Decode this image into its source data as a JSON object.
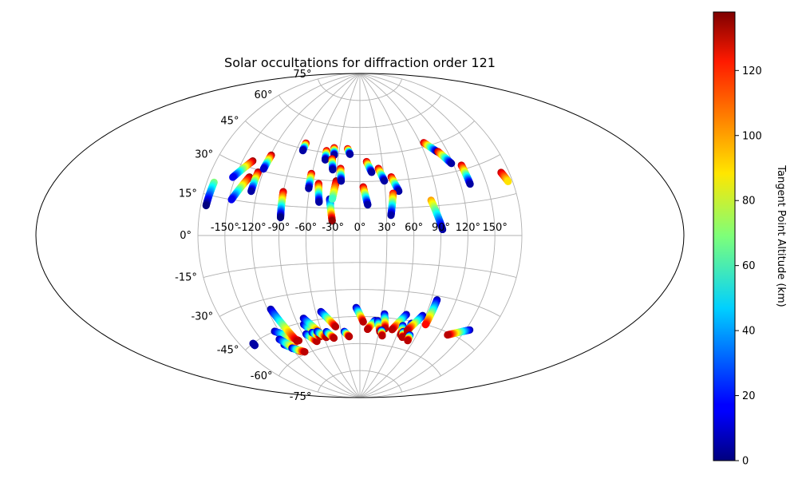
{
  "chart_data": {
    "type": "scatter",
    "title": "Solar occultations for diffraction order 121",
    "projection": "aitoff",
    "grid": true,
    "longitude_ticks": [
      {
        "value": -150,
        "label": "-150°"
      },
      {
        "value": -120,
        "label": "-120°"
      },
      {
        "value": -90,
        "label": "-90°"
      },
      {
        "value": -60,
        "label": "-60°"
      },
      {
        "value": -30,
        "label": "-30°"
      },
      {
        "value": 0,
        "label": "0°"
      },
      {
        "value": 30,
        "label": "30°"
      },
      {
        "value": 60,
        "label": "60°"
      },
      {
        "value": 90,
        "label": "90°"
      },
      {
        "value": 120,
        "label": "120°"
      },
      {
        "value": 150,
        "label": "150°"
      }
    ],
    "latitude_ticks": [
      {
        "value": 75,
        "label": "75°"
      },
      {
        "value": 60,
        "label": "60°"
      },
      {
        "value": 45,
        "label": "45°"
      },
      {
        "value": 30,
        "label": "30°"
      },
      {
        "value": 15,
        "label": "15°"
      },
      {
        "value": 0,
        "label": "0°"
      },
      {
        "value": -15,
        "label": "-15°"
      },
      {
        "value": -30,
        "label": "-30°"
      },
      {
        "value": -45,
        "label": "-45°"
      },
      {
        "value": -60,
        "label": "-60°"
      },
      {
        "value": -75,
        "label": "-75°"
      }
    ],
    "colorbar": {
      "label": "Tangent Point Altitude (km)",
      "min": 0,
      "max": 138,
      "colormap": "jet",
      "ticks": [
        {
          "value": 0,
          "label": "0"
        },
        {
          "value": 20,
          "label": "20"
        },
        {
          "value": 40,
          "label": "40"
        },
        {
          "value": 60,
          "label": "60"
        },
        {
          "value": 80,
          "label": "80"
        },
        {
          "value": 100,
          "label": "100"
        },
        {
          "value": 120,
          "label": "120"
        }
      ]
    },
    "tracks": [
      {
        "lon_start": -172,
        "lat_start": 20,
        "lon_end": -174,
        "lat_end": 11,
        "alt_start": 70,
        "alt_end": 0
      },
      {
        "lon_start": -138,
        "lat_start": 33,
        "lon_end": -153,
        "lat_end": 24,
        "alt_start": 135,
        "alt_end": 15
      },
      {
        "lon_start": -134,
        "lat_start": 26,
        "lon_end": -147,
        "lat_end": 15,
        "alt_start": 135,
        "alt_end": 15
      },
      {
        "lon_start": -126,
        "lat_start": 29,
        "lon_end": -127,
        "lat_end": 20,
        "alt_start": 135,
        "alt_end": 5
      },
      {
        "lon_start": -119,
        "lat_start": 38,
        "lon_end": -121,
        "lat_end": 31,
        "alt_start": 135,
        "alt_end": 10
      },
      {
        "lon_start": -90,
        "lat_start": 22,
        "lon_end": -89,
        "lat_end": 9,
        "alt_start": 130,
        "alt_end": 0
      },
      {
        "lon_start": -81,
        "lat_start": 48,
        "lon_end": -81,
        "lat_end": 44,
        "alt_start": 130,
        "alt_end": 5
      },
      {
        "lon_start": -61,
        "lat_start": 33,
        "lon_end": -61,
        "lat_end": 25,
        "alt_start": 130,
        "alt_end": 5
      },
      {
        "lon_start": -50,
        "lat_start": 28,
        "lon_end": -47,
        "lat_end": 18,
        "alt_start": 130,
        "alt_end": 5
      },
      {
        "lon_start": -48,
        "lat_start": 46,
        "lon_end": -47,
        "lat_end": 41,
        "alt_start": 130,
        "alt_end": 5
      },
      {
        "lon_start": -38,
        "lat_start": 48,
        "lon_end": -36,
        "lat_end": 44,
        "alt_start": 130,
        "alt_end": 5
      },
      {
        "lon_start": -38,
        "lat_start": 42,
        "lon_end": -35,
        "lat_end": 36,
        "alt_start": 130,
        "alt_end": 5
      },
      {
        "lon_start": -35,
        "lat_start": 20,
        "lon_end": -31,
        "lat_end": 8,
        "alt_start": 5,
        "alt_end": 135
      },
      {
        "lon_start": -29,
        "lat_start": 30,
        "lon_end": -32,
        "lat_end": 20,
        "alt_start": 135,
        "alt_end": 60
      },
      {
        "lon_start": -25,
        "lat_start": 37,
        "lon_end": -23,
        "lat_end": 30,
        "alt_start": 130,
        "alt_end": 5
      },
      {
        "lon_start": -18,
        "lat_start": 48,
        "lon_end": -14,
        "lat_end": 45,
        "alt_start": 130,
        "alt_end": 5
      },
      {
        "lon_start": 4,
        "lat_start": 27,
        "lon_end": 9,
        "lat_end": 17,
        "alt_start": 130,
        "alt_end": 5
      },
      {
        "lon_start": 9,
        "lat_start": 41,
        "lon_end": 15,
        "lat_end": 35,
        "alt_start": 130,
        "alt_end": 5
      },
      {
        "lon_start": 24,
        "lat_start": 37,
        "lon_end": 30,
        "lat_end": 30,
        "alt_start": 130,
        "alt_end": 5
      },
      {
        "lon_start": 39,
        "lat_start": 32,
        "lon_end": 46,
        "lat_end": 24,
        "alt_start": 130,
        "alt_end": 5
      },
      {
        "lon_start": 39,
        "lat_start": 23,
        "lon_end": 35,
        "lat_end": 11,
        "alt_start": 120,
        "alt_end": 5
      },
      {
        "lon_start": 82,
        "lat_start": 18,
        "lon_end": 92,
        "lat_end": 3,
        "alt_start": 100,
        "alt_end": 5
      },
      {
        "lon_start": 95,
        "lat_start": 47,
        "lon_end": 107,
        "lat_end": 41,
        "alt_start": 130,
        "alt_end": 5
      },
      {
        "lon_start": 108,
        "lat_start": 41,
        "lon_end": 118,
        "lat_end": 34,
        "alt_start": 130,
        "alt_end": 5
      },
      {
        "lon_start": 129,
        "lat_start": 32,
        "lon_end": 131,
        "lat_end": 23,
        "alt_start": 130,
        "alt_end": 5
      },
      {
        "lon_start": 171,
        "lat_start": 24,
        "lon_end": 175,
        "lat_end": 20,
        "alt_start": 130,
        "alt_end": 90
      },
      {
        "lon_start": -164,
        "lat_start": -45,
        "lon_end": -164,
        "lat_end": -46,
        "alt_start": 5,
        "alt_end": 5
      },
      {
        "lon_start": -126,
        "lat_start": -45,
        "lon_end": -101,
        "lat_end": -53,
        "alt_start": 5,
        "alt_end": 130
      },
      {
        "lon_start": -116,
        "lat_start": -35,
        "lon_end": -104,
        "lat_end": -53,
        "alt_start": 5,
        "alt_end": 130
      },
      {
        "lon_start": -126,
        "lat_start": -52,
        "lon_end": -110,
        "lat_end": -58,
        "alt_start": 5,
        "alt_end": 130
      },
      {
        "lon_start": -127,
        "lat_start": -49,
        "lon_end": -112,
        "lat_end": -57,
        "alt_start": 5,
        "alt_end": 130
      },
      {
        "lon_start": -119,
        "lat_start": -55,
        "lon_end": -104,
        "lat_end": -59,
        "alt_start": 5,
        "alt_end": 130
      },
      {
        "lon_start": -82,
        "lat_start": -46,
        "lon_end": -68,
        "lat_end": -53,
        "alt_start": 5,
        "alt_end": 130
      },
      {
        "lon_start": -79,
        "lat_start": -43,
        "lon_end": -62,
        "lat_end": -53,
        "alt_start": 5,
        "alt_end": 130
      },
      {
        "lon_start": -85,
        "lat_start": -51,
        "lon_end": -74,
        "lat_end": -56,
        "alt_start": 5,
        "alt_end": 130
      },
      {
        "lon_start": -75,
        "lat_start": -51,
        "lon_end": -65,
        "lat_end": -54,
        "alt_start": 5,
        "alt_end": 130
      },
      {
        "lon_start": -67,
        "lat_start": -51,
        "lon_end": -56,
        "lat_end": -55,
        "alt_start": 5,
        "alt_end": 130
      },
      {
        "lon_start": -53,
        "lat_start": -41,
        "lon_end": -37,
        "lat_end": -50,
        "alt_start": 5,
        "alt_end": 130
      },
      {
        "lon_start": -53,
        "lat_start": -52,
        "lon_end": -44,
        "lat_end": -56,
        "alt_start": 5,
        "alt_end": 130
      },
      {
        "lon_start": -25,
        "lat_start": -53,
        "lon_end": -18,
        "lat_end": -56,
        "alt_start": 5,
        "alt_end": 130
      },
      {
        "lon_start": -5,
        "lat_start": -40,
        "lon_end": 5,
        "lat_end": -48,
        "alt_start": 5,
        "alt_end": 130
      },
      {
        "lon_start": 22,
        "lat_start": -47,
        "lon_end": 12,
        "lat_end": -52,
        "alt_start": 5,
        "alt_end": 130
      },
      {
        "lon_start": 26,
        "lat_start": -47,
        "lon_end": 32,
        "lat_end": -53,
        "alt_start": 5,
        "alt_end": 130
      },
      {
        "lon_start": 34,
        "lat_start": -43,
        "lon_end": 39,
        "lat_end": -51,
        "alt_start": 5,
        "alt_end": 130
      },
      {
        "lon_start": 34,
        "lat_start": -52,
        "lon_end": 37,
        "lat_end": -55,
        "alt_start": 5,
        "alt_end": 130
      },
      {
        "lon_start": 64,
        "lat_start": -42,
        "lon_end": 50,
        "lat_end": -51,
        "alt_start": 5,
        "alt_end": 130
      },
      {
        "lon_start": 64,
        "lat_start": -48,
        "lon_end": 66,
        "lat_end": -53,
        "alt_start": 5,
        "alt_end": 130
      },
      {
        "lon_start": 68,
        "lat_start": -51,
        "lon_end": 70,
        "lat_end": -54,
        "alt_start": 5,
        "alt_end": 130
      },
      {
        "lon_start": 75,
        "lat_start": -46,
        "lon_end": 75,
        "lat_end": -53,
        "alt_start": 5,
        "alt_end": 130
      },
      {
        "lon_start": 86,
        "lat_start": -41,
        "lon_end": 73,
        "lat_end": -50,
        "alt_start": 5,
        "alt_end": 130
      },
      {
        "lon_start": 80,
        "lat_start": -52,
        "lon_end": 81,
        "lat_end": -55,
        "alt_start": 5,
        "alt_end": 130
      },
      {
        "lon_start": 97,
        "lat_start": -32,
        "lon_end": 95,
        "lat_end": -45,
        "alt_start": 5,
        "alt_end": 120
      },
      {
        "lon_start": 155,
        "lat_start": -40,
        "lon_end": 132,
        "lat_end": -46,
        "alt_start": 5,
        "alt_end": 130
      }
    ]
  }
}
